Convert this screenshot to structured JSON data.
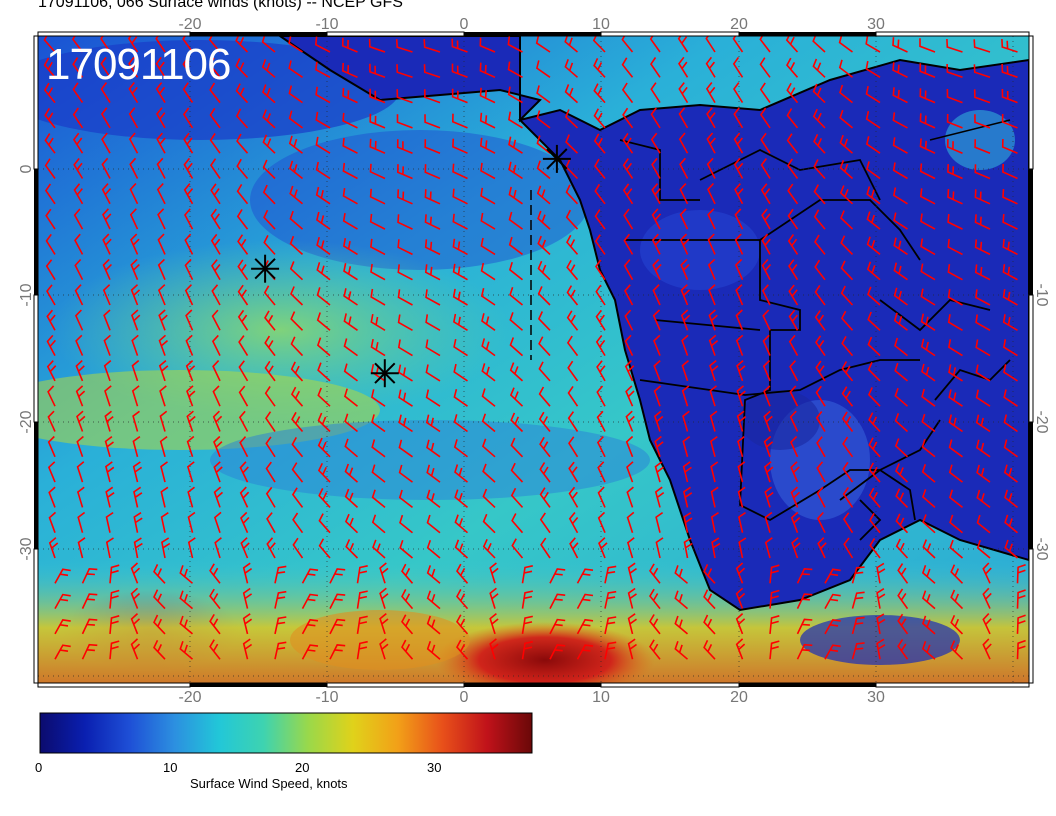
{
  "header": {
    "title": "17091106, 066 Surface winds (knots) -- NCEP GFS",
    "stamp": "17091106"
  },
  "map": {
    "lon_ticks_top": [
      "-20",
      "-10",
      "0",
      "10",
      "20",
      "30"
    ],
    "lon_ticks_bottom": [
      "-20",
      "-10",
      "0",
      "10",
      "20",
      "30"
    ],
    "lat_ticks_left": [
      "0",
      "-10",
      "-20",
      "-30"
    ],
    "lat_ticks_right": [
      "-10",
      "-20",
      "-30"
    ],
    "lon_range": [
      -31,
      41
    ],
    "lat_range": [
      -40,
      9.5
    ],
    "wind_barb_color": "#ff0000",
    "coastline_color": "#000000",
    "markers": [
      {
        "lon": 6.7,
        "lat": 0.1
      },
      {
        "lon": -14.5,
        "lat": -8.3
      },
      {
        "lon": -5.8,
        "lat": -16.3
      }
    ]
  },
  "colorbar": {
    "label": "Surface Wind Speed, knots",
    "ticks": [
      "0",
      "10",
      "20",
      "30"
    ],
    "tick_values": [
      0,
      10,
      20,
      30
    ],
    "max": 36,
    "colors": [
      "#0b0b6e",
      "#0a1fb0",
      "#1e4fd6",
      "#2c8fe0",
      "#22c7d8",
      "#3ed3b0",
      "#9ad84a",
      "#e0d21a",
      "#f2a018",
      "#e8501a",
      "#c0121a",
      "#6a0808"
    ]
  }
}
